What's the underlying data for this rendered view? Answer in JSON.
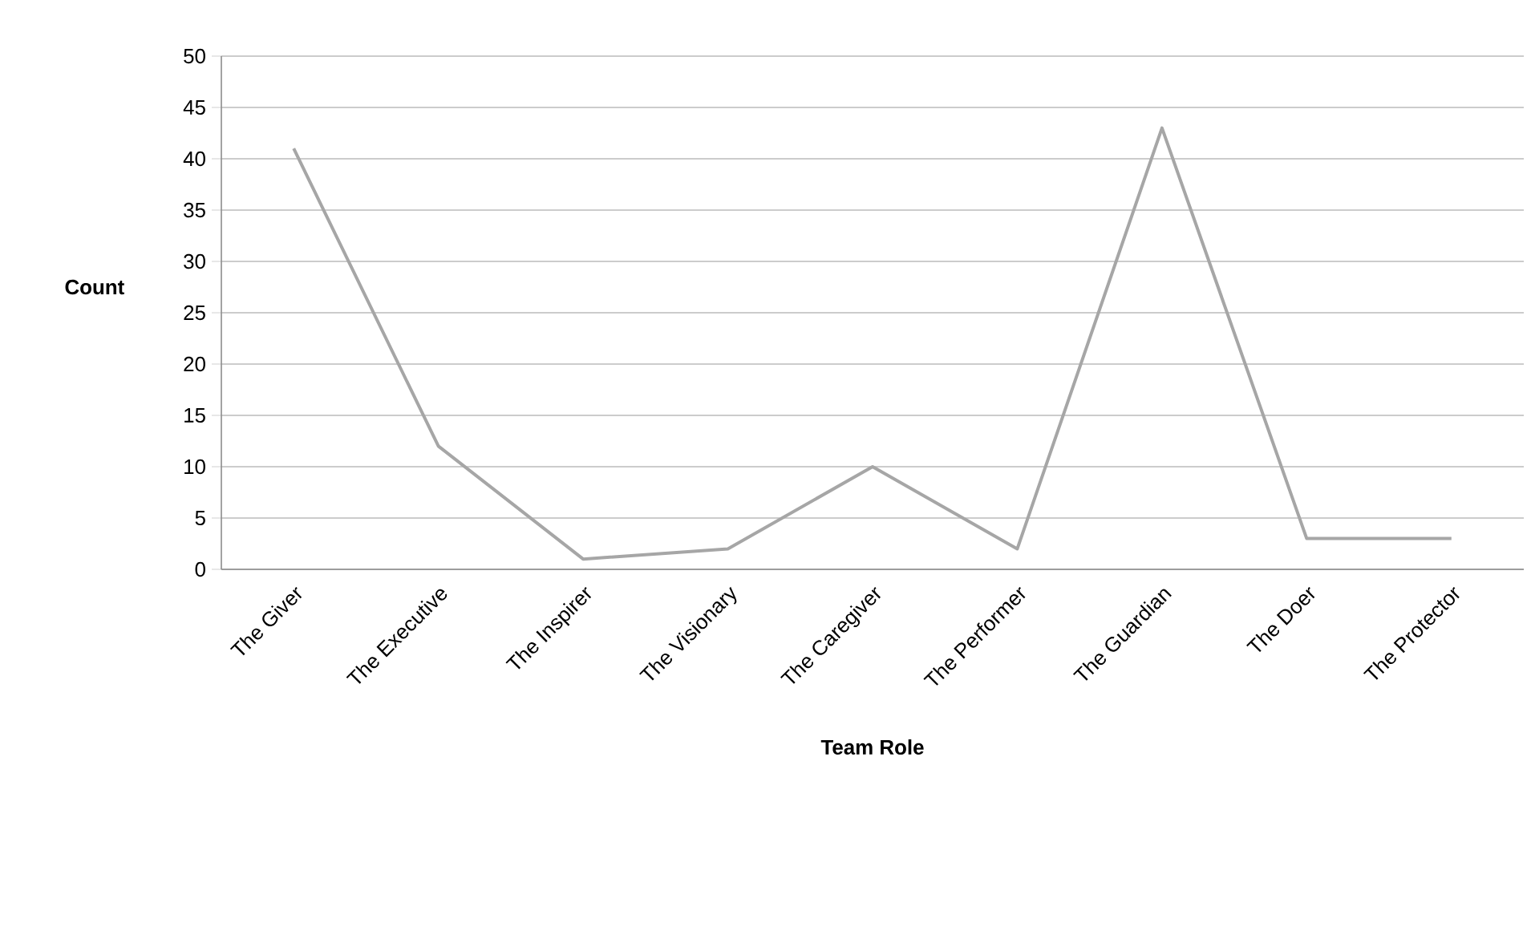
{
  "chart_data": {
    "type": "line",
    "xlabel": "Team Role",
    "ylabel": "Count",
    "categories": [
      "The Giver",
      "The Executive",
      "The Inspirer",
      "The Visionary",
      "The Caregiver",
      "The Performer",
      "The Guardian",
      "The Doer",
      "The Protector"
    ],
    "series": [
      {
        "color": "#a6a6a6",
        "values": [
          41,
          12,
          1,
          2,
          10,
          2,
          43,
          3,
          3
        ]
      }
    ],
    "ylim": [
      0,
      50
    ],
    "yticks": [
      0,
      5,
      10,
      15,
      20,
      25,
      30,
      35,
      40,
      45,
      50
    ],
    "grid": "y",
    "marker": "none",
    "line_style": "solid"
  }
}
